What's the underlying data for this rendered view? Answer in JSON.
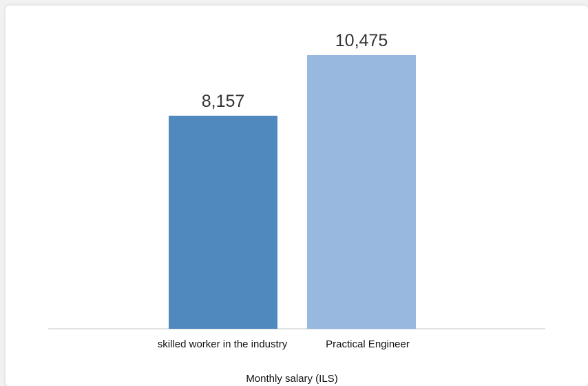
{
  "chart_data": {
    "type": "bar",
    "categories": [
      "skilled worker in the industry",
      "Practical Engineer"
    ],
    "values": [
      8157,
      10475
    ],
    "data_labels": [
      "8,157",
      "10,475"
    ],
    "colors": [
      "#4f89bd",
      "#98b8df"
    ],
    "title": "",
    "xlabel": "Monthly salary (ILS)",
    "ylabel": "",
    "ylim": [
      0,
      10475
    ],
    "grid": false,
    "legend": "none"
  }
}
